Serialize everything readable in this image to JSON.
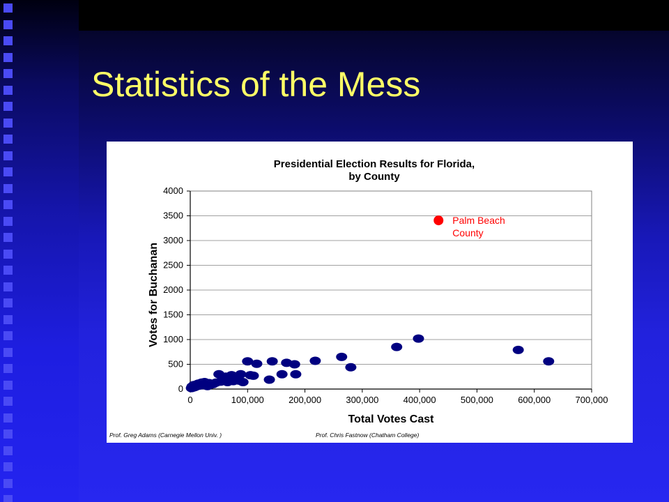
{
  "slide": {
    "title": "Statistics of the Mess"
  },
  "colors": {
    "title": "#ffff66",
    "point": "#000080",
    "highlight": "#ff0000"
  },
  "chart_data": {
    "type": "scatter",
    "title": [
      "Presidential Election Results for Florida,",
      "by County"
    ],
    "xlabel": "Total Votes Cast",
    "ylabel": "Votes for Buchanan",
    "xlim": [
      0,
      700000
    ],
    "ylim": [
      0,
      4000
    ],
    "xticks": [
      0,
      100000,
      200000,
      300000,
      400000,
      500000,
      600000,
      700000
    ],
    "xtick_labels": [
      "0",
      "100,000",
      "200,000",
      "300,000",
      "400,000",
      "500,000",
      "600,000",
      "700,000"
    ],
    "yticks": [
      0,
      500,
      1000,
      1500,
      2000,
      2500,
      3000,
      3500,
      4000
    ],
    "ytick_labels": [
      "0",
      "500",
      "1000",
      "1500",
      "2000",
      "2500",
      "3000",
      "3500",
      "4000"
    ],
    "grid": "horizontal",
    "points": [
      [
        2000,
        20
      ],
      [
        3000,
        50
      ],
      [
        5000,
        30
      ],
      [
        6000,
        80
      ],
      [
        8000,
        40
      ],
      [
        10000,
        90
      ],
      [
        12000,
        60
      ],
      [
        14000,
        110
      ],
      [
        16000,
        70
      ],
      [
        18000,
        100
      ],
      [
        20000,
        130
      ],
      [
        22000,
        80
      ],
      [
        25000,
        140
      ],
      [
        28000,
        110
      ],
      [
        30000,
        60
      ],
      [
        33000,
        120
      ],
      [
        36000,
        90
      ],
      [
        40000,
        100
      ],
      [
        45000,
        130
      ],
      [
        50000,
        300
      ],
      [
        53000,
        150
      ],
      [
        58000,
        180
      ],
      [
        62000,
        250
      ],
      [
        65000,
        140
      ],
      [
        70000,
        200
      ],
      [
        72000,
        280
      ],
      [
        75000,
        160
      ],
      [
        80000,
        230
      ],
      [
        85000,
        170
      ],
      [
        88000,
        300
      ],
      [
        92000,
        140
      ],
      [
        100000,
        560
      ],
      [
        105000,
        280
      ],
      [
        110000,
        270
      ],
      [
        116000,
        510
      ],
      [
        138000,
        190
      ],
      [
        143000,
        560
      ],
      [
        160000,
        300
      ],
      [
        168000,
        530
      ],
      [
        182000,
        500
      ],
      [
        184000,
        300
      ],
      [
        218000,
        570
      ],
      [
        264000,
        650
      ],
      [
        280000,
        440
      ],
      [
        360000,
        850
      ],
      [
        398000,
        1020
      ],
      [
        572000,
        790
      ],
      [
        625000,
        560
      ]
    ],
    "highlight": {
      "label": [
        "Palm Beach",
        "County"
      ],
      "x": 433000,
      "y": 3407
    },
    "credits": [
      "Prof. Greg Adams (Carnegie Mellon Univ. )",
      "Prof. Chris Fastnow (Chatham College)"
    ]
  }
}
